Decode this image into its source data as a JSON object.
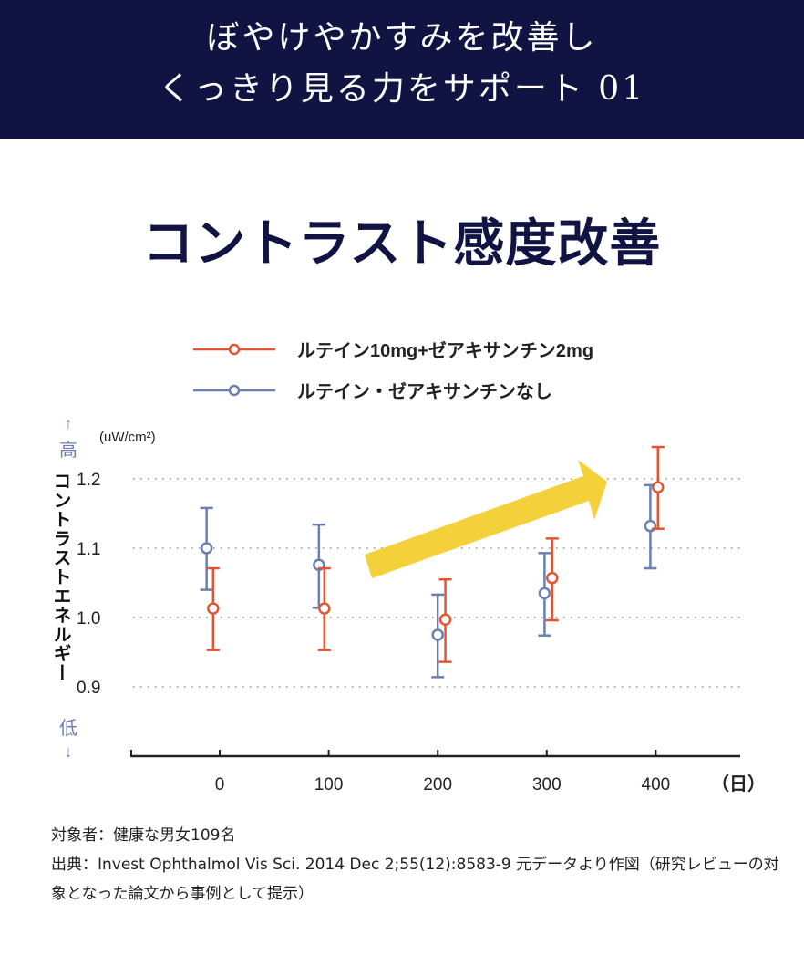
{
  "header": {
    "line1": "ぼやけやかすみを改善し",
    "line2": "くっきり見る力をサポート 01"
  },
  "title": "コントラスト感度改善",
  "colors": {
    "navy": "#111443",
    "orange": "#e4552f",
    "blue": "#6b7fb0",
    "arrow": "#f4d03a"
  },
  "chart_data": {
    "type": "scatter",
    "ylabel": "コントラストエネルギー",
    "yunit": "(uW/cm²)",
    "y_high_label": "高",
    "y_low_label": "低",
    "xunit": "（日）",
    "xticks": [
      0,
      100,
      200,
      300,
      400
    ],
    "yticks": [
      "0.9",
      "1.0",
      "1.1",
      "1.2"
    ],
    "ylim": [
      0.8,
      1.27
    ],
    "xlim": [
      -81,
      474
    ],
    "grid": "horizontal-dotted",
    "legend_placement": "top",
    "series": [
      {
        "name": "ルテイン10mg+ゼアキサンチン2mg",
        "color": "#e4552f",
        "points": [
          {
            "x": -6,
            "y": 1.013,
            "lo": 0.953,
            "hi": 1.071
          },
          {
            "x": 96,
            "y": 1.013,
            "lo": 0.953,
            "hi": 1.071
          },
          {
            "x": 207,
            "y": 0.997,
            "lo": 0.936,
            "hi": 1.055
          },
          {
            "x": 305,
            "y": 1.057,
            "lo": 0.996,
            "hi": 1.114
          },
          {
            "x": 402,
            "y": 1.188,
            "lo": 1.128,
            "hi": 1.246
          }
        ]
      },
      {
        "name": "ルテイン・ゼアキサンチンなし",
        "color": "#6b7fb0",
        "points": [
          {
            "x": -12,
            "y": 1.1,
            "lo": 1.04,
            "hi": 1.158
          },
          {
            "x": 91,
            "y": 1.076,
            "lo": 1.014,
            "hi": 1.134
          },
          {
            "x": 200,
            "y": 0.975,
            "lo": 0.914,
            "hi": 1.033
          },
          {
            "x": 298,
            "y": 1.035,
            "lo": 0.974,
            "hi": 1.093
          },
          {
            "x": 395,
            "y": 1.132,
            "lo": 1.071,
            "hi": 1.191
          }
        ]
      }
    ]
  },
  "notes": {
    "subjects": "対象者：健康な男女109名",
    "source": "出典：Invest Ophthalmol Vis Sci. 2014 Dec 2;55(12):8583-9 元データより作図（研究レビューの対象となった論文から事例として提示）"
  }
}
